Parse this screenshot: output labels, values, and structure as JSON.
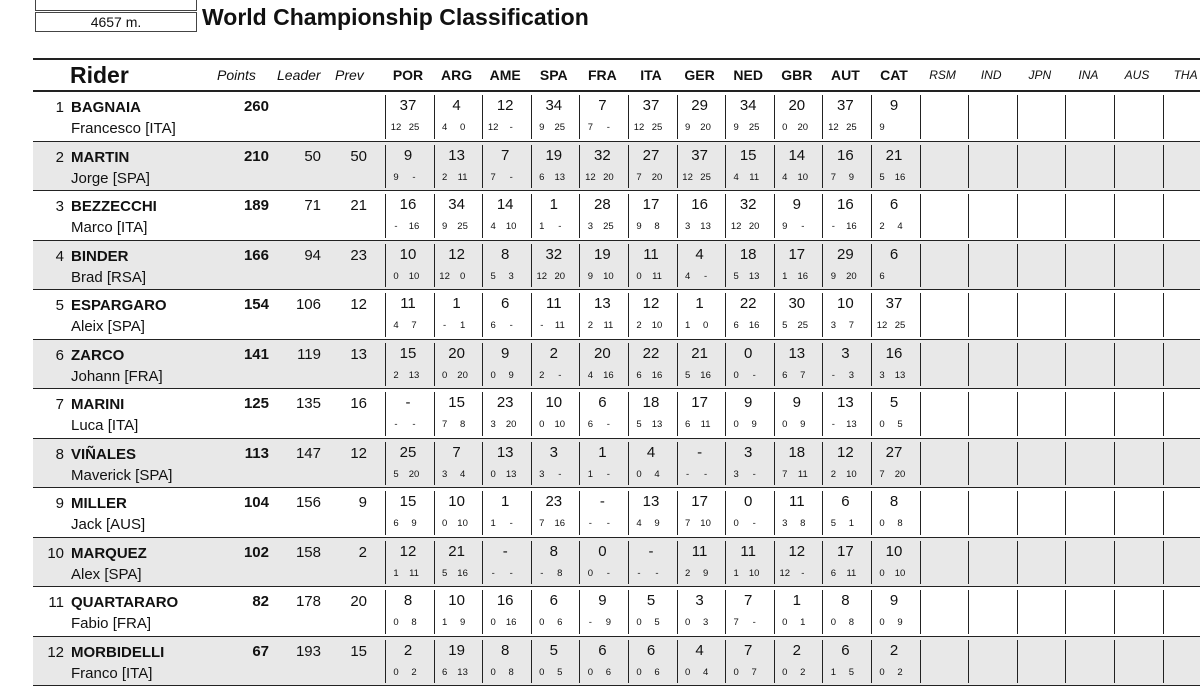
{
  "header": {
    "distance": "4657 m.",
    "title": "World Championship Classification",
    "col_rider": "Rider",
    "col_points": "Points",
    "col_leader": "Leader",
    "col_prev": "Prev",
    "races": [
      "POR",
      "ARG",
      "AME",
      "SPA",
      "FRA",
      "ITA",
      "GER",
      "NED",
      "GBR",
      "AUT",
      "CAT"
    ],
    "future_races": [
      "RSM",
      "IND",
      "JPN",
      "INA",
      "AUS",
      "THA"
    ]
  },
  "riders": [
    {
      "pos": "1",
      "surname": "BAGNAIA",
      "first": "Francesco [ITA]",
      "points": "260",
      "leader": "",
      "prev": "",
      "races": [
        [
          "37",
          "12",
          "25"
        ],
        [
          "4",
          "4",
          "0"
        ],
        [
          "12",
          "12",
          "-"
        ],
        [
          "34",
          "9",
          "25"
        ],
        [
          "7",
          "7",
          "-"
        ],
        [
          "37",
          "12",
          "25"
        ],
        [
          "29",
          "9",
          "20"
        ],
        [
          "34",
          "9",
          "25"
        ],
        [
          "20",
          "0",
          "20"
        ],
        [
          "37",
          "12",
          "25"
        ],
        [
          "9",
          "9",
          ""
        ]
      ]
    },
    {
      "pos": "2",
      "surname": "MARTIN",
      "first": "Jorge [SPA]",
      "points": "210",
      "leader": "50",
      "prev": "50",
      "races": [
        [
          "9",
          "9",
          "-"
        ],
        [
          "13",
          "2",
          "11"
        ],
        [
          "7",
          "7",
          "-"
        ],
        [
          "19",
          "6",
          "13"
        ],
        [
          "32",
          "12",
          "20"
        ],
        [
          "27",
          "7",
          "20"
        ],
        [
          "37",
          "12",
          "25"
        ],
        [
          "15",
          "4",
          "11"
        ],
        [
          "14",
          "4",
          "10"
        ],
        [
          "16",
          "7",
          "9"
        ],
        [
          "21",
          "5",
          "16"
        ]
      ]
    },
    {
      "pos": "3",
      "surname": "BEZZECCHI",
      "first": "Marco [ITA]",
      "points": "189",
      "leader": "71",
      "prev": "21",
      "races": [
        [
          "16",
          "-",
          "16"
        ],
        [
          "34",
          "9",
          "25"
        ],
        [
          "14",
          "4",
          "10"
        ],
        [
          "1",
          "1",
          "-"
        ],
        [
          "28",
          "3",
          "25"
        ],
        [
          "17",
          "9",
          "8"
        ],
        [
          "16",
          "3",
          "13"
        ],
        [
          "32",
          "12",
          "20"
        ],
        [
          "9",
          "9",
          "-"
        ],
        [
          "16",
          "-",
          "16"
        ],
        [
          "6",
          "2",
          "4"
        ]
      ]
    },
    {
      "pos": "4",
      "surname": "BINDER",
      "first": "Brad [RSA]",
      "points": "166",
      "leader": "94",
      "prev": "23",
      "races": [
        [
          "10",
          "0",
          "10"
        ],
        [
          "12",
          "12",
          "0"
        ],
        [
          "8",
          "5",
          "3"
        ],
        [
          "32",
          "12",
          "20"
        ],
        [
          "19",
          "9",
          "10"
        ],
        [
          "11",
          "0",
          "11"
        ],
        [
          "4",
          "4",
          "-"
        ],
        [
          "18",
          "5",
          "13"
        ],
        [
          "17",
          "1",
          "16"
        ],
        [
          "29",
          "9",
          "20"
        ],
        [
          "6",
          "6",
          ""
        ]
      ]
    },
    {
      "pos": "5",
      "surname": "ESPARGARO",
      "first": "Aleix [SPA]",
      "points": "154",
      "leader": "106",
      "prev": "12",
      "races": [
        [
          "11",
          "4",
          "7"
        ],
        [
          "1",
          "-",
          "1"
        ],
        [
          "6",
          "6",
          "-"
        ],
        [
          "11",
          "-",
          "11"
        ],
        [
          "13",
          "2",
          "11"
        ],
        [
          "12",
          "2",
          "10"
        ],
        [
          "1",
          "1",
          "0"
        ],
        [
          "22",
          "6",
          "16"
        ],
        [
          "30",
          "5",
          "25"
        ],
        [
          "10",
          "3",
          "7"
        ],
        [
          "37",
          "12",
          "25"
        ]
      ]
    },
    {
      "pos": "6",
      "surname": "ZARCO",
      "first": "Johann [FRA]",
      "points": "141",
      "leader": "119",
      "prev": "13",
      "races": [
        [
          "15",
          "2",
          "13"
        ],
        [
          "20",
          "0",
          "20"
        ],
        [
          "9",
          "0",
          "9"
        ],
        [
          "2",
          "2",
          "-"
        ],
        [
          "20",
          "4",
          "16"
        ],
        [
          "22",
          "6",
          "16"
        ],
        [
          "21",
          "5",
          "16"
        ],
        [
          "0",
          "0",
          "-"
        ],
        [
          "13",
          "6",
          "7"
        ],
        [
          "3",
          "-",
          "3"
        ],
        [
          "16",
          "3",
          "13"
        ]
      ]
    },
    {
      "pos": "7",
      "surname": "MARINI",
      "first": "Luca [ITA]",
      "points": "125",
      "leader": "135",
      "prev": "16",
      "races": [
        [
          "-",
          "-",
          "-"
        ],
        [
          "15",
          "7",
          "8"
        ],
        [
          "23",
          "3",
          "20"
        ],
        [
          "10",
          "0",
          "10"
        ],
        [
          "6",
          "6",
          "-"
        ],
        [
          "18",
          "5",
          "13"
        ],
        [
          "17",
          "6",
          "11"
        ],
        [
          "9",
          "0",
          "9"
        ],
        [
          "9",
          "0",
          "9"
        ],
        [
          "13",
          "-",
          "13"
        ],
        [
          "5",
          "0",
          "5"
        ]
      ]
    },
    {
      "pos": "8",
      "surname": "VIÑALES",
      "first": "Maverick [SPA]",
      "points": "113",
      "leader": "147",
      "prev": "12",
      "races": [
        [
          "25",
          "5",
          "20"
        ],
        [
          "7",
          "3",
          "4"
        ],
        [
          "13",
          "0",
          "13"
        ],
        [
          "3",
          "3",
          "-"
        ],
        [
          "1",
          "1",
          "-"
        ],
        [
          "4",
          "0",
          "4"
        ],
        [
          "-",
          "-",
          "-"
        ],
        [
          "3",
          "3",
          "-"
        ],
        [
          "18",
          "7",
          "11"
        ],
        [
          "12",
          "2",
          "10"
        ],
        [
          "27",
          "7",
          "20"
        ]
      ]
    },
    {
      "pos": "9",
      "surname": "MILLER",
      "first": "Jack [AUS]",
      "points": "104",
      "leader": "156",
      "prev": "9",
      "races": [
        [
          "15",
          "6",
          "9"
        ],
        [
          "10",
          "0",
          "10"
        ],
        [
          "1",
          "1",
          "-"
        ],
        [
          "23",
          "7",
          "16"
        ],
        [
          "-",
          "-",
          "-"
        ],
        [
          "13",
          "4",
          "9"
        ],
        [
          "17",
          "7",
          "10"
        ],
        [
          "0",
          "0",
          "-"
        ],
        [
          "11",
          "3",
          "8"
        ],
        [
          "6",
          "5",
          "1"
        ],
        [
          "8",
          "0",
          "8"
        ]
      ]
    },
    {
      "pos": "10",
      "surname": "MARQUEZ",
      "first": "Alex [SPA]",
      "points": "102",
      "leader": "158",
      "prev": "2",
      "races": [
        [
          "12",
          "1",
          "11"
        ],
        [
          "21",
          "5",
          "16"
        ],
        [
          "-",
          "-",
          "-"
        ],
        [
          "8",
          "-",
          "8"
        ],
        [
          "0",
          "0",
          "-"
        ],
        [
          "-",
          "-",
          "-"
        ],
        [
          "11",
          "2",
          "9"
        ],
        [
          "11",
          "1",
          "10"
        ],
        [
          "12",
          "12",
          "-"
        ],
        [
          "17",
          "6",
          "11"
        ],
        [
          "10",
          "0",
          "10"
        ]
      ]
    },
    {
      "pos": "11",
      "surname": "QUARTARARO",
      "first": "Fabio [FRA]",
      "points": "82",
      "leader": "178",
      "prev": "20",
      "races": [
        [
          "8",
          "0",
          "8"
        ],
        [
          "10",
          "1",
          "9"
        ],
        [
          "16",
          "0",
          "16"
        ],
        [
          "6",
          "0",
          "6"
        ],
        [
          "9",
          "-",
          "9"
        ],
        [
          "5",
          "0",
          "5"
        ],
        [
          "3",
          "0",
          "3"
        ],
        [
          "7",
          "7",
          "-"
        ],
        [
          "1",
          "0",
          "1"
        ],
        [
          "8",
          "0",
          "8"
        ],
        [
          "9",
          "0",
          "9"
        ]
      ]
    },
    {
      "pos": "12",
      "surname": "MORBIDELLI",
      "first": "Franco [ITA]",
      "points": "67",
      "leader": "193",
      "prev": "15",
      "races": [
        [
          "2",
          "0",
          "2"
        ],
        [
          "19",
          "6",
          "13"
        ],
        [
          "8",
          "0",
          "8"
        ],
        [
          "5",
          "0",
          "5"
        ],
        [
          "6",
          "0",
          "6"
        ],
        [
          "6",
          "0",
          "6"
        ],
        [
          "4",
          "0",
          "4"
        ],
        [
          "7",
          "0",
          "7"
        ],
        [
          "2",
          "0",
          "2"
        ],
        [
          "6",
          "1",
          "5"
        ],
        [
          "2",
          "0",
          "2"
        ]
      ]
    }
  ]
}
